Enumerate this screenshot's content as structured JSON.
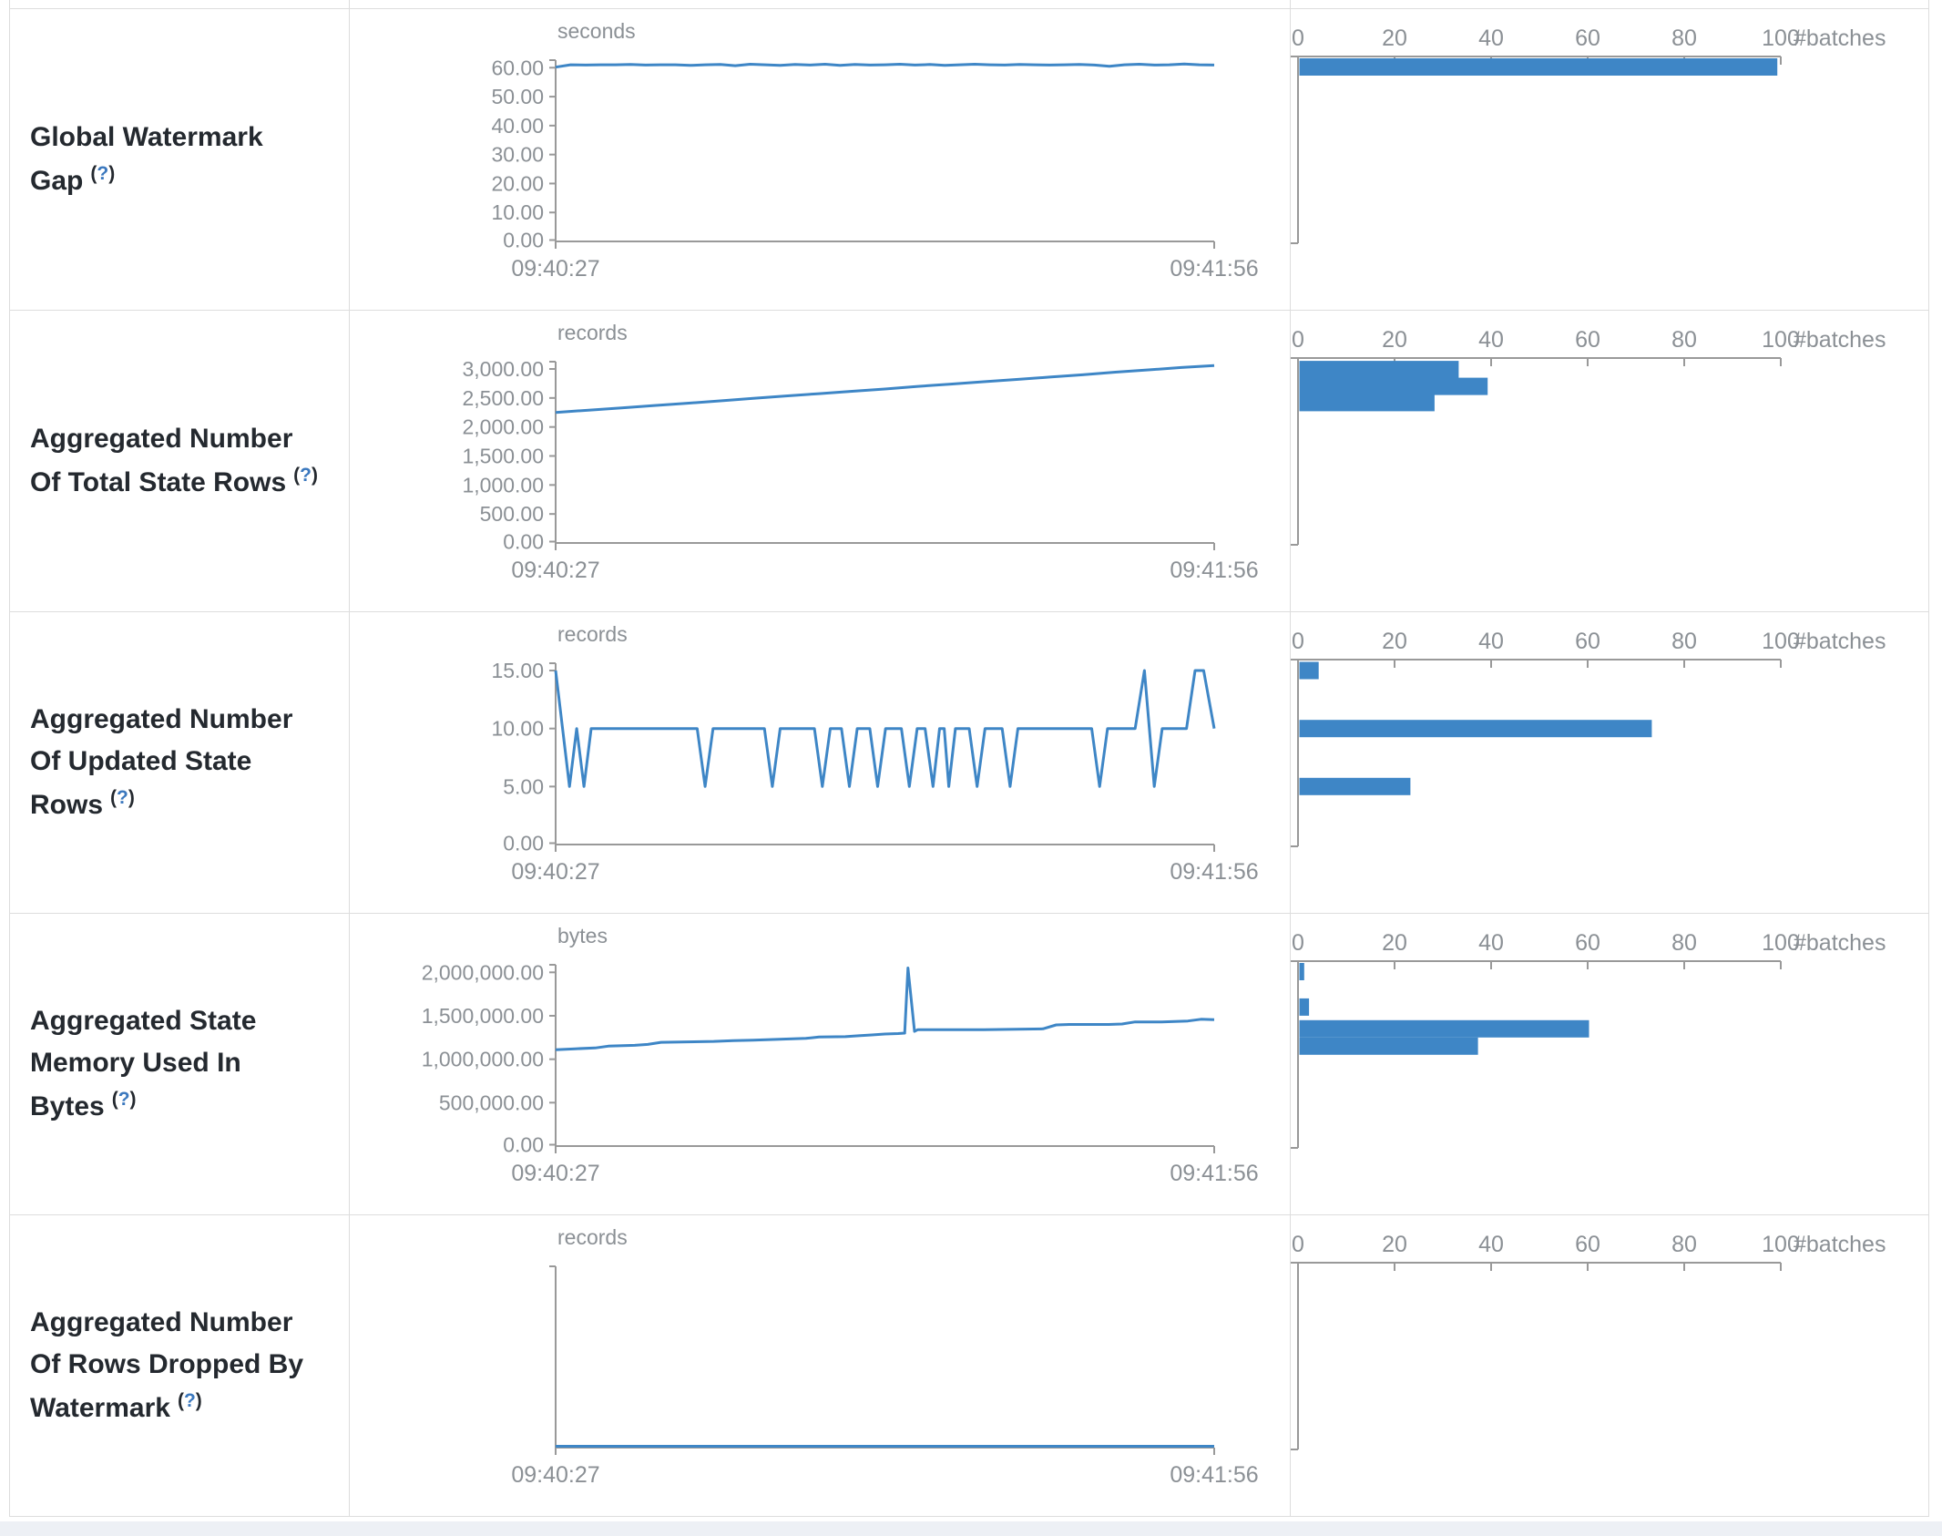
{
  "strings": {
    "help_open": "(",
    "help_q": "?",
    "help_close": ")",
    "batches_label": "#batches"
  },
  "theme": {
    "accent": "#3e86c6",
    "axis": "#999999",
    "tick_text": "#8b9095",
    "label_text": "#24292f",
    "help_link": "#3b78be",
    "border": "#dddddd",
    "footer_bg": "#edf0f5"
  },
  "hist_axis": {
    "ticks": [
      {
        "value": 0,
        "label": "0"
      },
      {
        "value": 20,
        "label": "20"
      },
      {
        "value": 40,
        "label": "40"
      },
      {
        "value": 60,
        "label": "60"
      },
      {
        "value": 80,
        "label": "80"
      },
      {
        "value": 100,
        "label": "100"
      }
    ],
    "max": 100
  },
  "chart_data": [
    {
      "type": "line+bar-histogram",
      "label": "Global Watermark Gap",
      "unit": "seconds",
      "timeline": {
        "x_start_label": "09:40:27",
        "x_end_label": "09:41:56",
        "y_max": 64.5,
        "y_ticks": [
          {
            "value": 60,
            "label": "60.00"
          },
          {
            "value": 50,
            "label": "50.00"
          },
          {
            "value": 40,
            "label": "40.00"
          },
          {
            "value": 30,
            "label": "30.00"
          },
          {
            "value": 20,
            "label": "20.00"
          },
          {
            "value": 10,
            "label": "10.00"
          },
          {
            "value": 0,
            "label": "0.00"
          }
        ],
        "values": [
          60.2,
          61.0,
          60.9,
          61.0,
          61.0,
          61.1,
          60.9,
          61.0,
          61.0,
          60.8,
          61.0,
          61.1,
          60.7,
          61.2,
          61.0,
          60.8,
          61.1,
          60.9,
          61.2,
          60.8,
          61.1,
          60.9,
          61.0,
          61.2,
          60.9,
          61.1,
          60.8,
          61.0,
          61.2,
          61.0,
          60.9,
          61.1,
          61.0,
          60.9,
          61.0,
          61.1,
          60.9,
          60.5,
          61.0,
          61.2,
          60.9,
          61.0,
          61.3,
          61.0,
          60.9
        ]
      },
      "histogram": {
        "bars": [
          {
            "value": 61,
            "count": 99
          }
        ]
      }
    },
    {
      "type": "line+bar-histogram",
      "label": "Aggregated Number Of Total State Rows",
      "unit": "records",
      "timeline": {
        "x_start_label": "09:40:27",
        "x_end_label": "09:41:56",
        "y_max": 3220,
        "y_ticks": [
          {
            "value": 3000,
            "label": "3,000.00"
          },
          {
            "value": 2500,
            "label": "2,500.00"
          },
          {
            "value": 2000,
            "label": "2,000.00"
          },
          {
            "value": 1500,
            "label": "1,500.00"
          },
          {
            "value": 1000,
            "label": "1,000.00"
          },
          {
            "value": 500,
            "label": "500.00"
          },
          {
            "value": 0,
            "label": "0.00"
          }
        ],
        "values": [
          2250,
          2290,
          2330,
          2370,
          2410,
          2450,
          2495,
          2535,
          2575,
          2615,
          2655,
          2700,
          2740,
          2780,
          2820,
          2860,
          2900,
          2945,
          2985,
          3025,
          3060
        ]
      },
      "histogram": {
        "bars": [
          {
            "value": 2990,
            "count": 33
          },
          {
            "value": 2700,
            "count": 39
          },
          {
            "value": 2420,
            "count": 28
          }
        ]
      }
    },
    {
      "type": "line+bar-histogram",
      "label": "Aggregated Number Of Updated State Rows",
      "unit": "records",
      "timeline": {
        "x_start_label": "09:40:27",
        "x_end_label": "09:41:56",
        "y_max": 16.1,
        "y_ticks": [
          {
            "value": 15,
            "label": "15.00"
          },
          {
            "value": 10,
            "label": "10.00"
          },
          {
            "value": 5,
            "label": "5.00"
          },
          {
            "value": 0,
            "label": "0.00"
          }
        ],
        "points": [
          [
            0,
            15
          ],
          [
            0.021,
            5
          ],
          [
            0.032,
            10
          ],
          [
            0.043,
            5
          ],
          [
            0.054,
            10
          ],
          [
            0.215,
            10
          ],
          [
            0.227,
            5
          ],
          [
            0.239,
            10
          ],
          [
            0.317,
            10
          ],
          [
            0.329,
            5
          ],
          [
            0.341,
            10
          ],
          [
            0.393,
            10
          ],
          [
            0.405,
            5
          ],
          [
            0.417,
            10
          ],
          [
            0.434,
            10
          ],
          [
            0.446,
            5
          ],
          [
            0.458,
            10
          ],
          [
            0.477,
            10
          ],
          [
            0.489,
            5
          ],
          [
            0.501,
            10
          ],
          [
            0.525,
            10
          ],
          [
            0.537,
            5
          ],
          [
            0.549,
            10
          ],
          [
            0.561,
            10
          ],
          [
            0.573,
            5
          ],
          [
            0.583,
            10
          ],
          [
            0.59,
            10
          ],
          [
            0.597,
            5
          ],
          [
            0.607,
            10
          ],
          [
            0.628,
            10
          ],
          [
            0.64,
            5
          ],
          [
            0.652,
            10
          ],
          [
            0.678,
            10
          ],
          [
            0.69,
            5
          ],
          [
            0.702,
            10
          ],
          [
            0.814,
            10
          ],
          [
            0.826,
            5
          ],
          [
            0.838,
            10
          ],
          [
            0.88,
            10
          ],
          [
            0.894,
            15
          ],
          [
            0.909,
            5
          ],
          [
            0.921,
            10
          ],
          [
            0.958,
            10
          ],
          [
            0.971,
            15
          ],
          [
            0.984,
            15
          ],
          [
            1,
            10
          ]
        ]
      },
      "histogram": {
        "bars": [
          {
            "value": 15,
            "count": 4
          },
          {
            "value": 10,
            "count": 73
          },
          {
            "value": 5,
            "count": 23
          }
        ]
      }
    },
    {
      "type": "line+bar-histogram",
      "label": "Aggregated State Memory Used In Bytes",
      "unit": "bytes",
      "timeline": {
        "x_start_label": "09:40:27",
        "x_end_label": "09:41:56",
        "y_max": 2150000,
        "y_ticks": [
          {
            "value": 2000000,
            "label": "2,000,000.00"
          },
          {
            "value": 1500000,
            "label": "1,500,000.00"
          },
          {
            "value": 1000000,
            "label": "1,000,000.00"
          },
          {
            "value": 500000,
            "label": "500,000.00"
          },
          {
            "value": 0,
            "label": "0.00"
          }
        ],
        "points": [
          [
            0,
            1110000
          ],
          [
            0.03,
            1120000
          ],
          [
            0.06,
            1130000
          ],
          [
            0.08,
            1150000
          ],
          [
            0.12,
            1160000
          ],
          [
            0.14,
            1170000
          ],
          [
            0.16,
            1195000
          ],
          [
            0.2,
            1200000
          ],
          [
            0.24,
            1205000
          ],
          [
            0.27,
            1215000
          ],
          [
            0.3,
            1220000
          ],
          [
            0.34,
            1230000
          ],
          [
            0.38,
            1240000
          ],
          [
            0.4,
            1255000
          ],
          [
            0.44,
            1260000
          ],
          [
            0.46,
            1270000
          ],
          [
            0.48,
            1280000
          ],
          [
            0.5,
            1290000
          ],
          [
            0.52,
            1295000
          ],
          [
            0.53,
            1300000
          ],
          [
            0.535,
            2050000
          ],
          [
            0.545,
            1320000
          ],
          [
            0.55,
            1340000
          ],
          [
            0.6,
            1340000
          ],
          [
            0.65,
            1340000
          ],
          [
            0.7,
            1345000
          ],
          [
            0.74,
            1350000
          ],
          [
            0.76,
            1395000
          ],
          [
            0.78,
            1400000
          ],
          [
            0.82,
            1400000
          ],
          [
            0.84,
            1400000
          ],
          [
            0.86,
            1405000
          ],
          [
            0.88,
            1430000
          ],
          [
            0.92,
            1430000
          ],
          [
            0.94,
            1435000
          ],
          [
            0.96,
            1440000
          ],
          [
            0.98,
            1460000
          ],
          [
            1,
            1455000
          ]
        ]
      },
      "histogram": {
        "bars": [
          {
            "value": 2050000,
            "count": 1
          },
          {
            "value": 1600000,
            "count": 2
          },
          {
            "value": 1350000,
            "count": 60
          },
          {
            "value": 1150000,
            "count": 37
          }
        ]
      }
    },
    {
      "type": "line+bar-histogram",
      "label": "Aggregated Number Of Rows Dropped By Watermark",
      "unit": "records",
      "timeline": {
        "x_start_label": "09:40:27",
        "x_end_label": "09:41:56",
        "y_max": 0,
        "y_ticks": [],
        "points": [
          [
            0,
            0
          ],
          [
            1,
            0
          ]
        ]
      },
      "histogram": {
        "bars": []
      }
    }
  ]
}
